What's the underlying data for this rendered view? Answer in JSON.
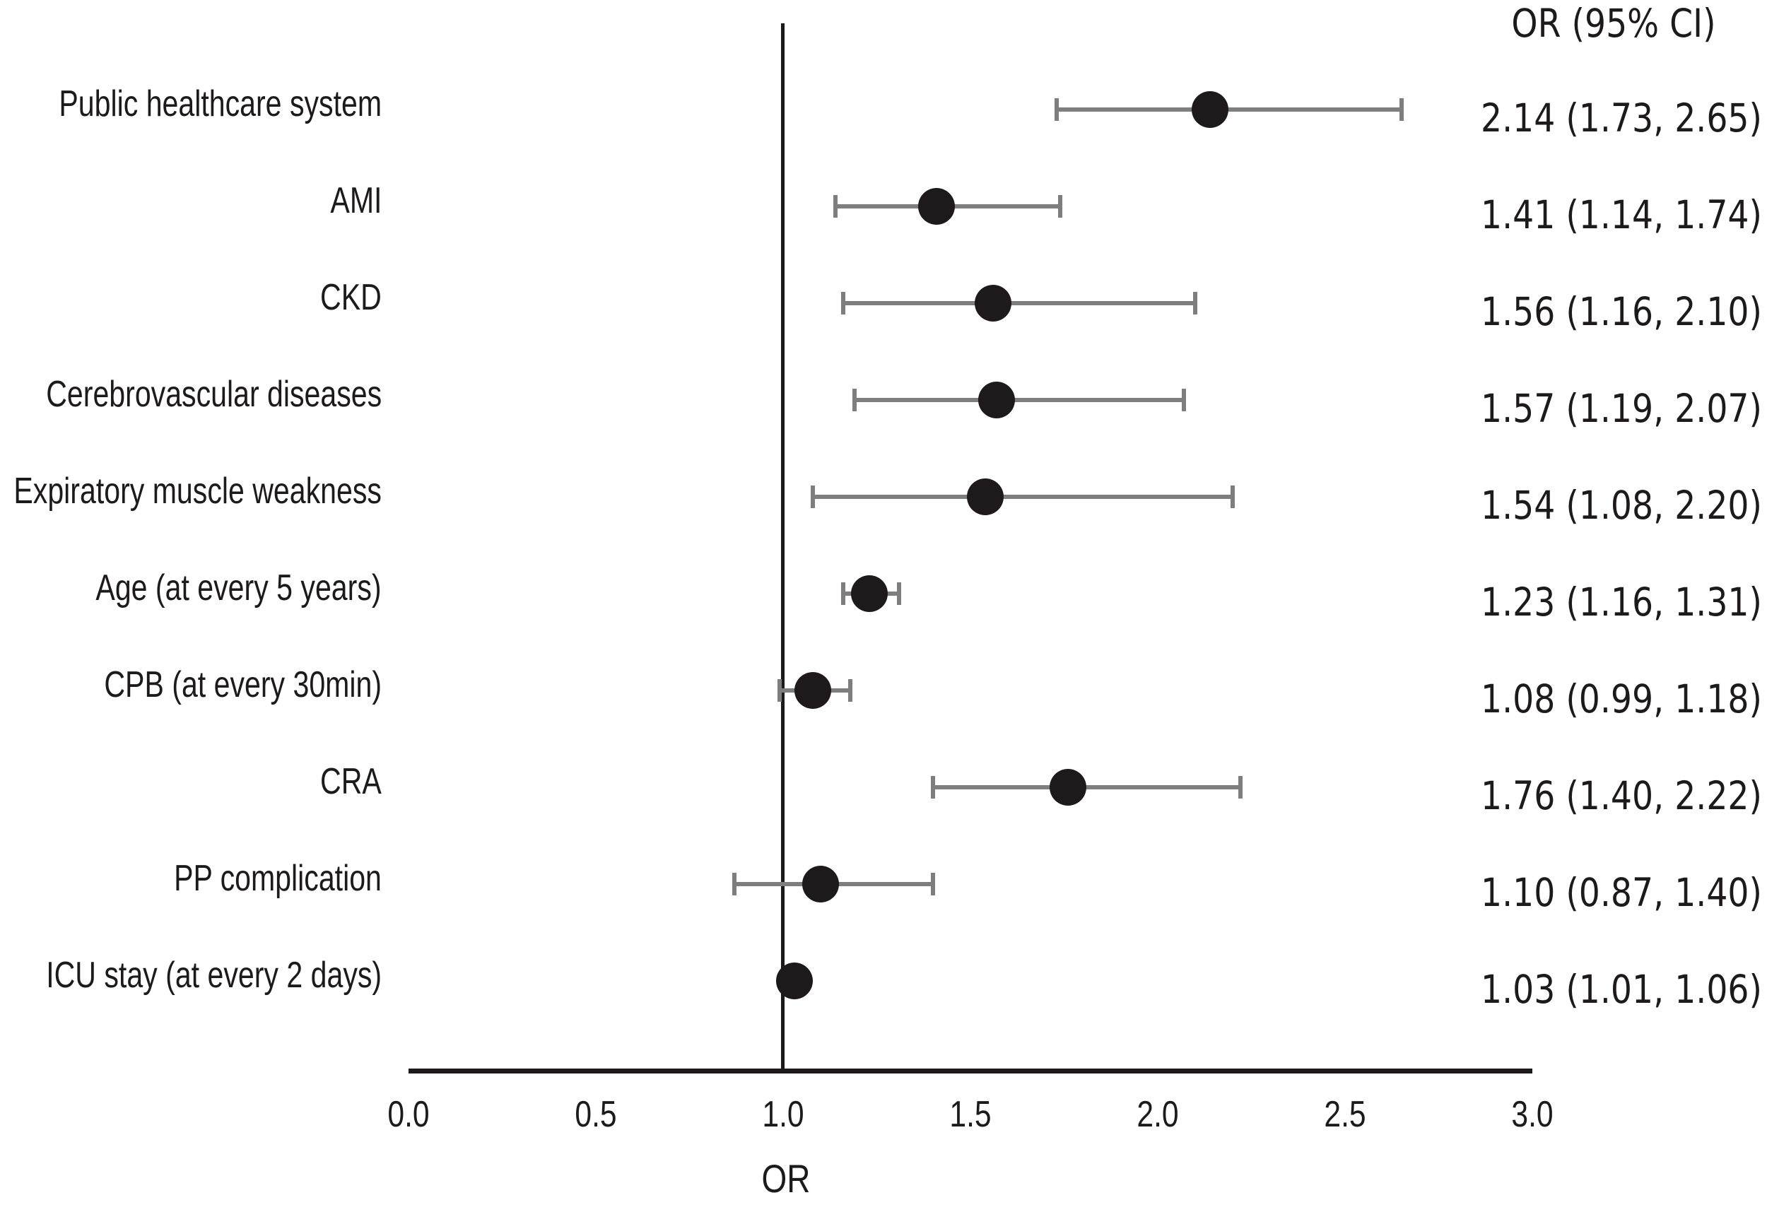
{
  "figure": {
    "right_column_header": "OR (95% CI)",
    "x_axis_title": "OR"
  },
  "chart_data": {
    "type": "scatter",
    "subtype": "forest-plot",
    "title": "",
    "xlabel": "OR",
    "ylabel": "",
    "right_column_header": "OR (95% CI)",
    "xlim": [
      0.0,
      3.0
    ],
    "x_ticks": [
      0.0,
      0.5,
      1.0,
      1.5,
      2.0,
      2.5,
      3.0
    ],
    "x_tick_labels": [
      "0.0",
      "0.5",
      "1.0",
      "1.5",
      "2.0",
      "2.5",
      "3.0"
    ],
    "reference_line_x": 1.0,
    "grid": false,
    "legend_position": "none",
    "rows": [
      {
        "label": "Public healthcare system",
        "or": 2.14,
        "ci_low": 1.73,
        "ci_high": 2.65,
        "ci_text": "2.14 (1.73, 2.65)"
      },
      {
        "label": "AMI",
        "or": 1.41,
        "ci_low": 1.14,
        "ci_high": 1.74,
        "ci_text": "1.41 (1.14, 1.74)"
      },
      {
        "label": "CKD",
        "or": 1.56,
        "ci_low": 1.16,
        "ci_high": 2.1,
        "ci_text": "1.56 (1.16, 2.10)"
      },
      {
        "label": "Cerebrovascular diseases",
        "or": 1.57,
        "ci_low": 1.19,
        "ci_high": 2.07,
        "ci_text": "1.57 (1.19, 2.07)"
      },
      {
        "label": "Expiratory muscle weakness",
        "or": 1.54,
        "ci_low": 1.08,
        "ci_high": 2.2,
        "ci_text": "1.54 (1.08, 2.20)"
      },
      {
        "label": "Age (at every 5 years)",
        "or": 1.23,
        "ci_low": 1.16,
        "ci_high": 1.31,
        "ci_text": "1.23 (1.16, 1.31)"
      },
      {
        "label": "CPB (at every 30min)",
        "or": 1.08,
        "ci_low": 0.99,
        "ci_high": 1.18,
        "ci_text": "1.08 (0.99, 1.18)"
      },
      {
        "label": "CRA",
        "or": 1.76,
        "ci_low": 1.4,
        "ci_high": 2.22,
        "ci_text": "1.76 (1.40, 2.22)"
      },
      {
        "label": "PP complication",
        "or": 1.1,
        "ci_low": 0.87,
        "ci_high": 1.4,
        "ci_text": "1.10 (0.87, 1.40)"
      },
      {
        "label": "ICU stay (at every 2 days)",
        "or": 1.03,
        "ci_low": 1.01,
        "ci_high": 1.06,
        "ci_text": "1.03 (1.01, 1.06)"
      }
    ],
    "colors": {
      "marker": "#1d1a1b",
      "error_bar": "#7e7e7e",
      "axis": "#1d1a1b",
      "text": "#1d1a1b",
      "background": "#ffffff"
    }
  }
}
